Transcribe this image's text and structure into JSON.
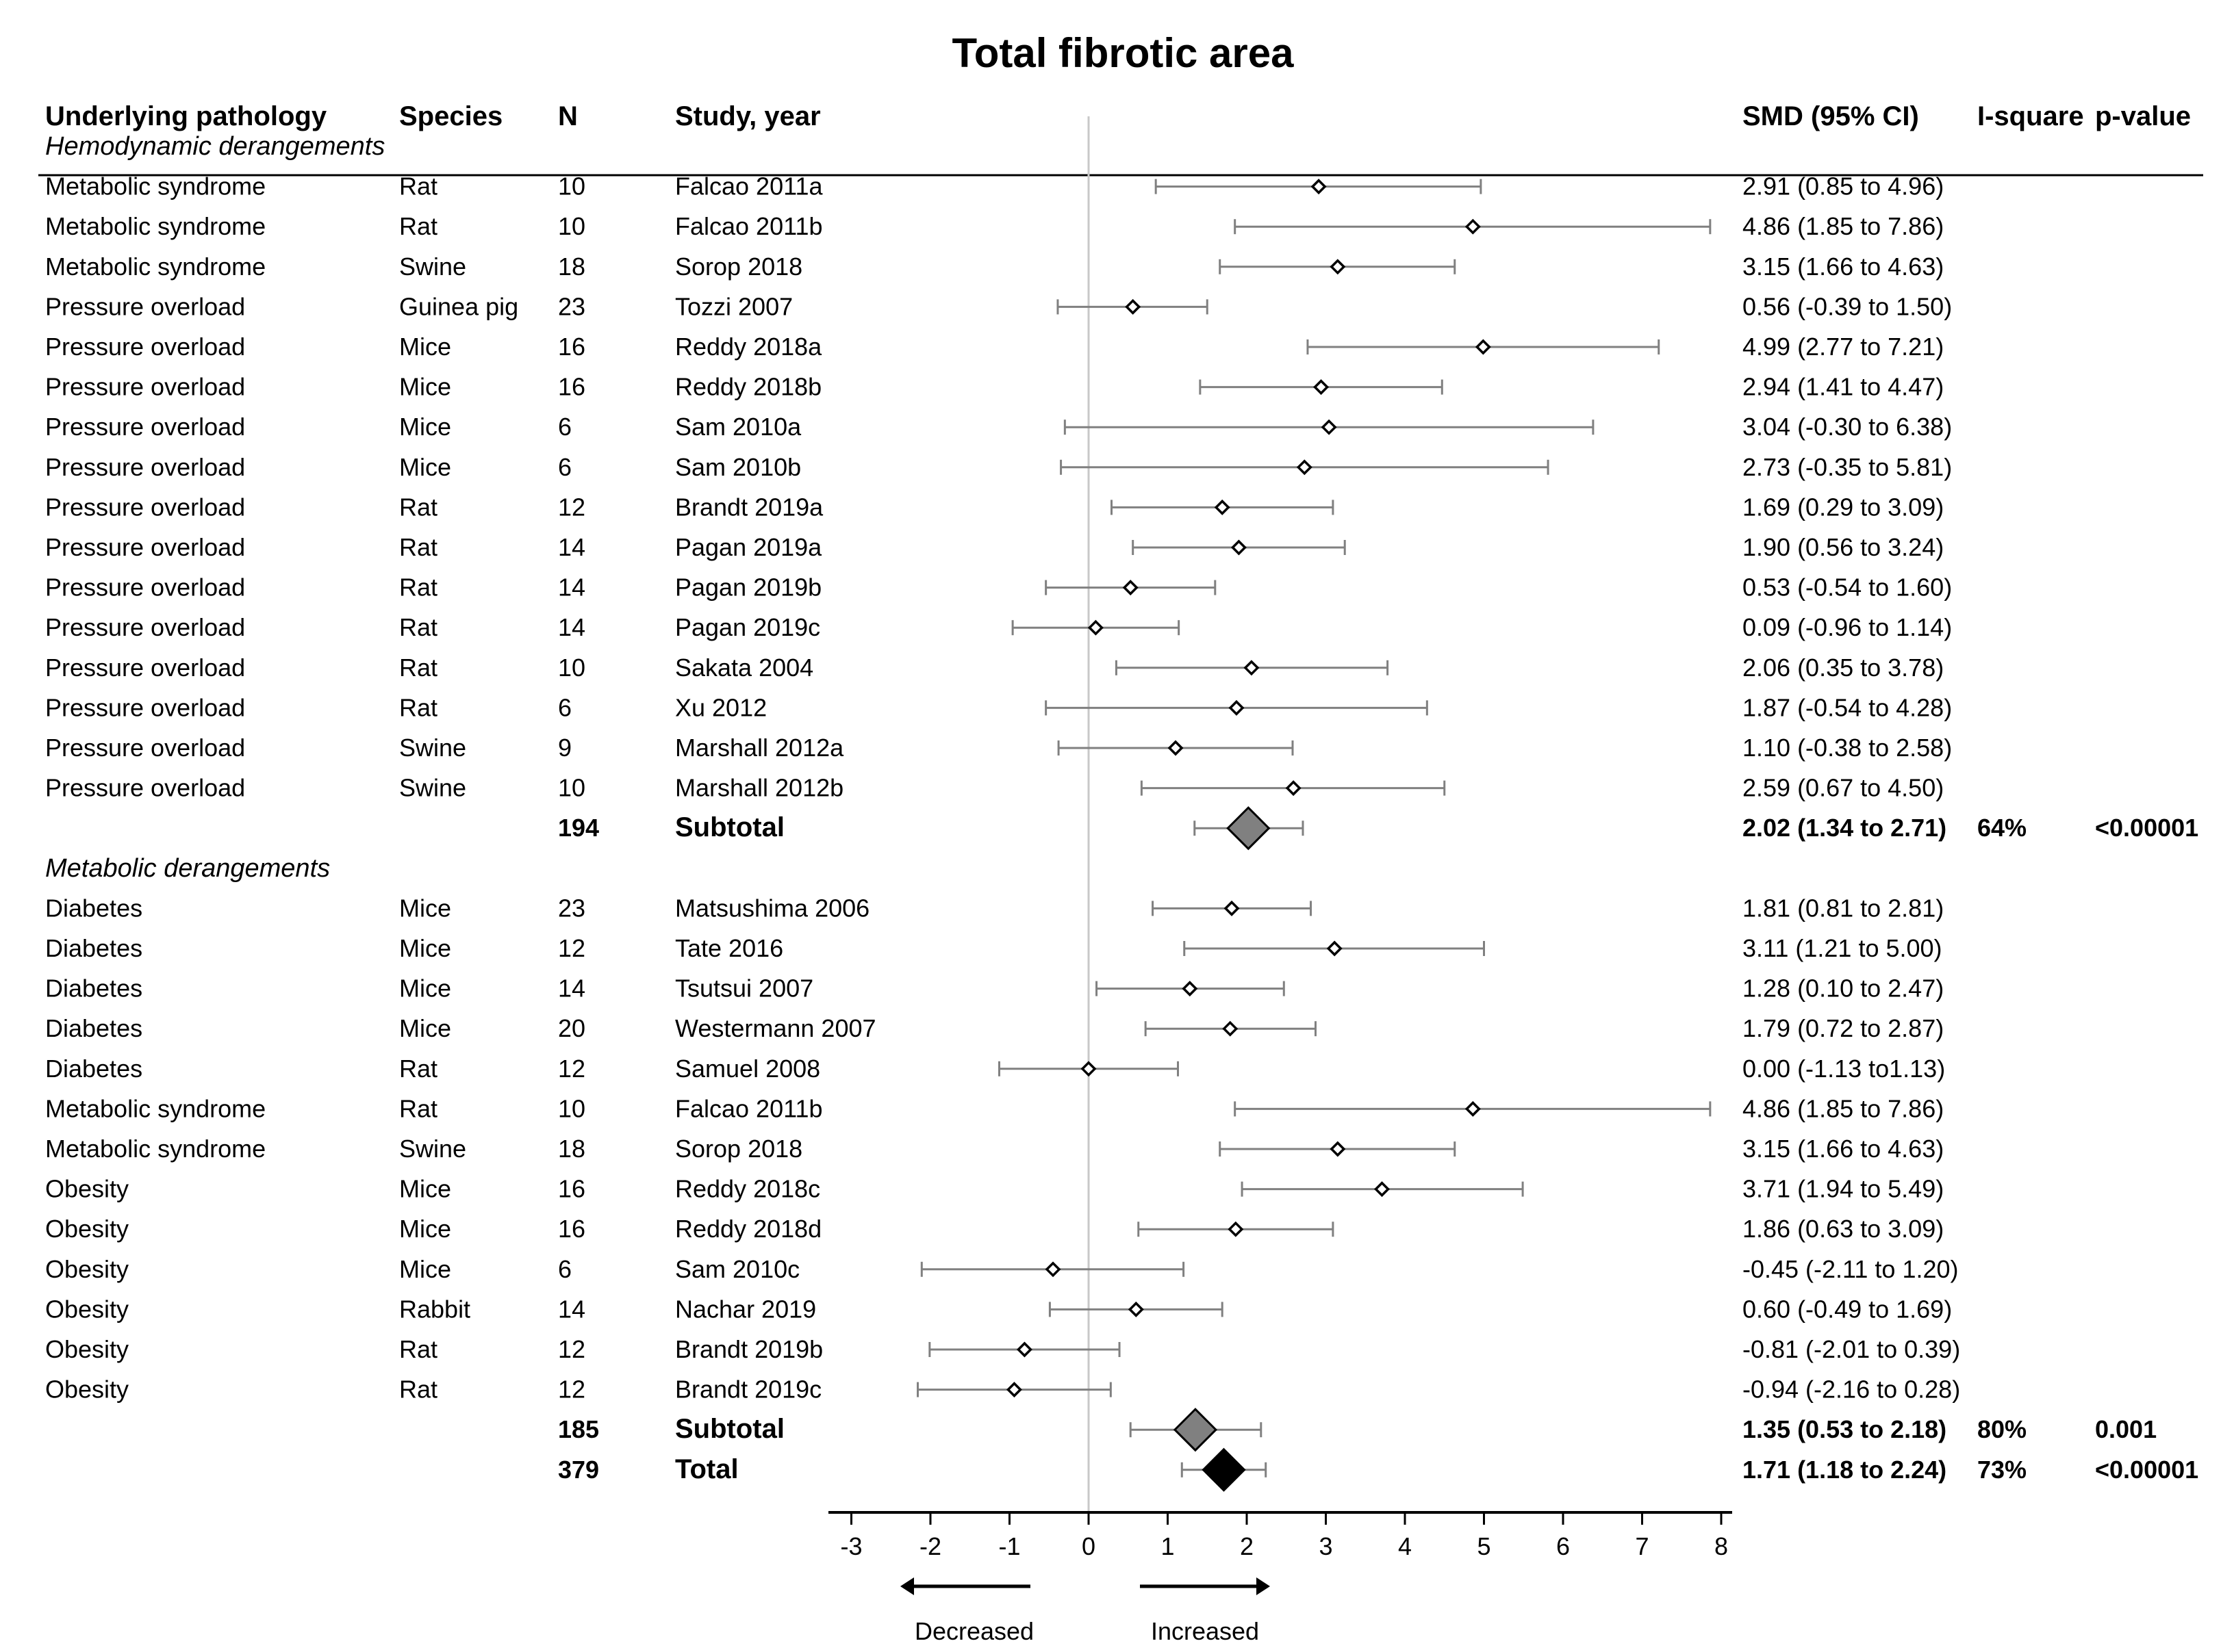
{
  "chart_data": {
    "type": "forest",
    "title": "Total fibrotic area",
    "columns": {
      "pathology": "Underlying pathology",
      "species": "Species",
      "n": "N",
      "study": "Study, year",
      "smd": "SMD (95% CI)",
      "isq": "I-square",
      "p": "p-value"
    },
    "xlim": [
      -3,
      8
    ],
    "ticks": [
      "-3",
      "-2",
      "-1",
      "0",
      "1",
      "2",
      "3",
      "4",
      "5",
      "6",
      "7",
      "8"
    ],
    "tick_values": [
      -3,
      -2,
      -1,
      0,
      1,
      2,
      3,
      4,
      5,
      6,
      7,
      8
    ],
    "arrow_labels": {
      "left": "Decreased",
      "right": "Increased"
    },
    "colors": {
      "study_line": "#808080",
      "subtotal_fill": "#808080",
      "total_fill": "#000000",
      "zero_line": "#c8c8c8"
    },
    "rows": [
      {
        "kind": "group",
        "label": "Hemodynamic derangements"
      },
      {
        "kind": "study",
        "pathology": "Metabolic syndrome",
        "species": "Rat",
        "n": "10",
        "study": "Falcao 2011a",
        "est": 2.91,
        "lo": 0.85,
        "hi": 4.96,
        "ci_text": "2.91 (0.85 to 4.96)"
      },
      {
        "kind": "study",
        "pathology": "Metabolic syndrome",
        "species": "Rat",
        "n": "10",
        "study": "Falcao 2011b",
        "est": 4.86,
        "lo": 1.85,
        "hi": 7.86,
        "ci_text": "4.86 (1.85 to 7.86)"
      },
      {
        "kind": "study",
        "pathology": "Metabolic syndrome",
        "species": "Swine",
        "n": "18",
        "study": "Sorop 2018",
        "est": 3.15,
        "lo": 1.66,
        "hi": 4.63,
        "ci_text": "3.15 (1.66 to 4.63)"
      },
      {
        "kind": "study",
        "pathology": "Pressure overload",
        "species": "Guinea pig",
        "n": "23",
        "study": "Tozzi 2007",
        "est": 0.56,
        "lo": -0.39,
        "hi": 1.5,
        "ci_text": "0.56 (-0.39 to 1.50)"
      },
      {
        "kind": "study",
        "pathology": "Pressure overload",
        "species": "Mice",
        "n": "16",
        "study": "Reddy 2018a",
        "est": 4.99,
        "lo": 2.77,
        "hi": 7.21,
        "ci_text": "4.99 (2.77 to 7.21)"
      },
      {
        "kind": "study",
        "pathology": "Pressure overload",
        "species": "Mice",
        "n": "16",
        "study": "Reddy 2018b",
        "est": 2.94,
        "lo": 1.41,
        "hi": 4.47,
        "ci_text": "2.94 (1.41 to 4.47)"
      },
      {
        "kind": "study",
        "pathology": "Pressure overload",
        "species": "Mice",
        "n": "6",
        "study": "Sam 2010a",
        "est": 3.04,
        "lo": -0.3,
        "hi": 6.38,
        "ci_text": "3.04 (-0.30 to 6.38)"
      },
      {
        "kind": "study",
        "pathology": "Pressure overload",
        "species": "Mice",
        "n": "6",
        "study": "Sam 2010b",
        "est": 2.73,
        "lo": -0.35,
        "hi": 5.81,
        "ci_text": "2.73 (-0.35 to 5.81)"
      },
      {
        "kind": "study",
        "pathology": "Pressure overload",
        "species": "Rat",
        "n": "12",
        "study": "Brandt 2019a",
        "est": 1.69,
        "lo": 0.29,
        "hi": 3.09,
        "ci_text": "1.69 (0.29 to 3.09)"
      },
      {
        "kind": "study",
        "pathology": "Pressure overload",
        "species": "Rat",
        "n": "14",
        "study": "Pagan 2019a",
        "est": 1.9,
        "lo": 0.56,
        "hi": 3.24,
        "ci_text": "1.90 (0.56 to 3.24)"
      },
      {
        "kind": "study",
        "pathology": "Pressure overload",
        "species": "Rat",
        "n": "14",
        "study": "Pagan 2019b",
        "est": 0.53,
        "lo": -0.54,
        "hi": 1.6,
        "ci_text": "0.53 (-0.54 to 1.60)"
      },
      {
        "kind": "study",
        "pathology": "Pressure overload",
        "species": "Rat",
        "n": "14",
        "study": "Pagan 2019c",
        "est": 0.09,
        "lo": -0.96,
        "hi": 1.14,
        "ci_text": "0.09 (-0.96 to 1.14)"
      },
      {
        "kind": "study",
        "pathology": "Pressure overload",
        "species": "Rat",
        "n": "10",
        "study": "Sakata 2004",
        "est": 2.06,
        "lo": 0.35,
        "hi": 3.78,
        "ci_text": "2.06 (0.35 to 3.78)"
      },
      {
        "kind": "study",
        "pathology": "Pressure overload",
        "species": "Rat",
        "n": "6",
        "study": "Xu 2012",
        "est": 1.87,
        "lo": -0.54,
        "hi": 4.28,
        "ci_text": "1.87 (-0.54 to 4.28)"
      },
      {
        "kind": "study",
        "pathology": "Pressure overload",
        "species": "Swine",
        "n": "9",
        "study": "Marshall 2012a",
        "est": 1.1,
        "lo": -0.38,
        "hi": 2.58,
        "ci_text": "1.10 (-0.38 to 2.58)"
      },
      {
        "kind": "study",
        "pathology": "Pressure overload",
        "species": "Swine",
        "n": "10",
        "study": "Marshall 2012b",
        "est": 2.59,
        "lo": 0.67,
        "hi": 4.5,
        "ci_text": "2.59 (0.67 to 4.50)"
      },
      {
        "kind": "subtotal",
        "n": "194",
        "study": "Subtotal",
        "est": 2.02,
        "lo": 1.34,
        "hi": 2.71,
        "ci_text": "2.02 (1.34 to 2.71)",
        "isq": "64%",
        "p": "<0.00001"
      },
      {
        "kind": "group",
        "label": "Metabolic derangements"
      },
      {
        "kind": "study",
        "pathology": "Diabetes",
        "species": "Mice",
        "n": "23",
        "study": "Matsushima 2006",
        "est": 1.81,
        "lo": 0.81,
        "hi": 2.81,
        "ci_text": "1.81 (0.81 to 2.81)"
      },
      {
        "kind": "study",
        "pathology": "Diabetes",
        "species": "Mice",
        "n": "12",
        "study": "Tate 2016",
        "est": 3.11,
        "lo": 1.21,
        "hi": 5.0,
        "ci_text": "3.11 (1.21 to 5.00)"
      },
      {
        "kind": "study",
        "pathology": "Diabetes",
        "species": "Mice",
        "n": "14",
        "study": "Tsutsui 2007",
        "est": 1.28,
        "lo": 0.1,
        "hi": 2.47,
        "ci_text": "1.28 (0.10 to 2.47)"
      },
      {
        "kind": "study",
        "pathology": "Diabetes",
        "species": "Mice",
        "n": "20",
        "study": "Westermann 2007",
        "est": 1.79,
        "lo": 0.72,
        "hi": 2.87,
        "ci_text": "1.79 (0.72 to 2.87)"
      },
      {
        "kind": "study",
        "pathology": "Diabetes",
        "species": "Rat",
        "n": "12",
        "study": "Samuel 2008",
        "est": 0.0,
        "lo": -1.13,
        "hi": 1.13,
        "ci_text": "0.00 (-1.13 to1.13)"
      },
      {
        "kind": "study",
        "pathology": "Metabolic syndrome",
        "species": "Rat",
        "n": "10",
        "study": "Falcao 2011b",
        "est": 4.86,
        "lo": 1.85,
        "hi": 7.86,
        "ci_text": "4.86 (1.85 to 7.86)"
      },
      {
        "kind": "study",
        "pathology": "Metabolic syndrome",
        "species": "Swine",
        "n": "18",
        "study": "Sorop 2018",
        "est": 3.15,
        "lo": 1.66,
        "hi": 4.63,
        "ci_text": "3.15 (1.66 to 4.63)"
      },
      {
        "kind": "study",
        "pathology": "Obesity",
        "species": "Mice",
        "n": "16",
        "study": "Reddy 2018c",
        "est": 3.71,
        "lo": 1.94,
        "hi": 5.49,
        "ci_text": "3.71 (1.94 to 5.49)"
      },
      {
        "kind": "study",
        "pathology": "Obesity",
        "species": "Mice",
        "n": "16",
        "study": "Reddy 2018d",
        "est": 1.86,
        "lo": 0.63,
        "hi": 3.09,
        "ci_text": "1.86 (0.63 to 3.09)"
      },
      {
        "kind": "study",
        "pathology": "Obesity",
        "species": "Mice",
        "n": "6",
        "study": "Sam 2010c",
        "est": -0.45,
        "lo": -2.11,
        "hi": 1.2,
        "ci_text": "-0.45 (-2.11 to 1.20)"
      },
      {
        "kind": "study",
        "pathology": "Obesity",
        "species": "Rabbit",
        "n": "14",
        "study": "Nachar 2019",
        "est": 0.6,
        "lo": -0.49,
        "hi": 1.69,
        "ci_text": "0.60 (-0.49 to 1.69)"
      },
      {
        "kind": "study",
        "pathology": "Obesity",
        "species": "Rat",
        "n": "12",
        "study": "Brandt 2019b",
        "est": -0.81,
        "lo": -2.01,
        "hi": 0.39,
        "ci_text": "-0.81 (-2.01 to 0.39)"
      },
      {
        "kind": "study",
        "pathology": "Obesity",
        "species": "Rat",
        "n": "12",
        "study": "Brandt 2019c",
        "est": -0.94,
        "lo": -2.16,
        "hi": 0.28,
        "ci_text": "-0.94 (-2.16 to 0.28)"
      },
      {
        "kind": "subtotal",
        "n": "185",
        "study": "Subtotal",
        "est": 1.35,
        "lo": 0.53,
        "hi": 2.18,
        "ci_text": "1.35 (0.53 to 2.18)",
        "isq": "80%",
        "p": "0.001"
      },
      {
        "kind": "total",
        "n": "379",
        "study": "Total",
        "est": 1.71,
        "lo": 1.18,
        "hi": 2.24,
        "ci_text": "1.71 (1.18 to 2.24)",
        "isq": "73%",
        "p": "<0.00001"
      }
    ]
  }
}
